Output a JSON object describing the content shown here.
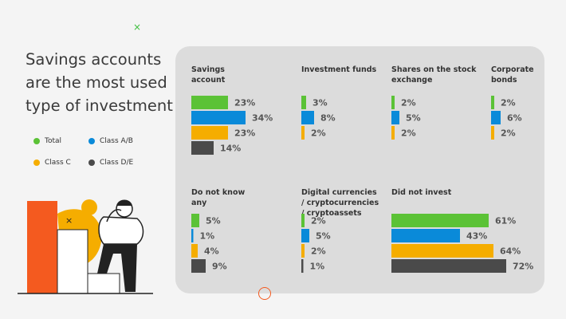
{
  "title": "Savings accounts are the most used type of investment",
  "legend": [
    {
      "label": "Total",
      "color": "#5bc236"
    },
    {
      "label": "Class A/B",
      "color": "#0a8ad9"
    },
    {
      "label": "Class C",
      "color": "#f5ad00"
    },
    {
      "label": "Class D/E",
      "color": "#4a4a4a"
    }
  ],
  "chart_data": {
    "type": "bar",
    "series_names": [
      "Total",
      "Class A/B",
      "Class C",
      "Class D/E"
    ],
    "colors": [
      "#5bc236",
      "#0a8ad9",
      "#f5ad00",
      "#4a4a4a"
    ],
    "groups": [
      {
        "title": "Savings account",
        "values": [
          23,
          34,
          23,
          14
        ],
        "labels": [
          "23%",
          "34%",
          "23%",
          "14%"
        ]
      },
      {
        "title": "Investment funds",
        "values": [
          3,
          8,
          2,
          null
        ],
        "labels": [
          "3%",
          "8%",
          "2%",
          ""
        ]
      },
      {
        "title": "Shares on the stock exchange",
        "values": [
          2,
          5,
          2,
          null
        ],
        "labels": [
          "2%",
          "5%",
          "2%",
          ""
        ]
      },
      {
        "title": "Corporate bonds",
        "values": [
          2,
          6,
          2,
          null
        ],
        "labels": [
          "2%",
          "6%",
          "2%",
          ""
        ]
      },
      {
        "title": "Do not know any",
        "values": [
          5,
          1,
          4,
          9
        ],
        "labels": [
          "5%",
          "1%",
          "4%",
          "9%"
        ]
      },
      {
        "title": "Digital currencies / cryptocurrencies / cryptoassets",
        "values": [
          2,
          5,
          2,
          1
        ],
        "labels": [
          "2%",
          "5%",
          "2%",
          "1%"
        ]
      },
      {
        "title": "Did not invest",
        "values": [
          61,
          43,
          64,
          72
        ],
        "labels": [
          "61%",
          "43%",
          "64%",
          "72%"
        ]
      }
    ]
  },
  "decor": {
    "accent_orange": "#f45a1f",
    "accent_yellow": "#f5ad00",
    "accent_green": "#3fbf3f"
  }
}
